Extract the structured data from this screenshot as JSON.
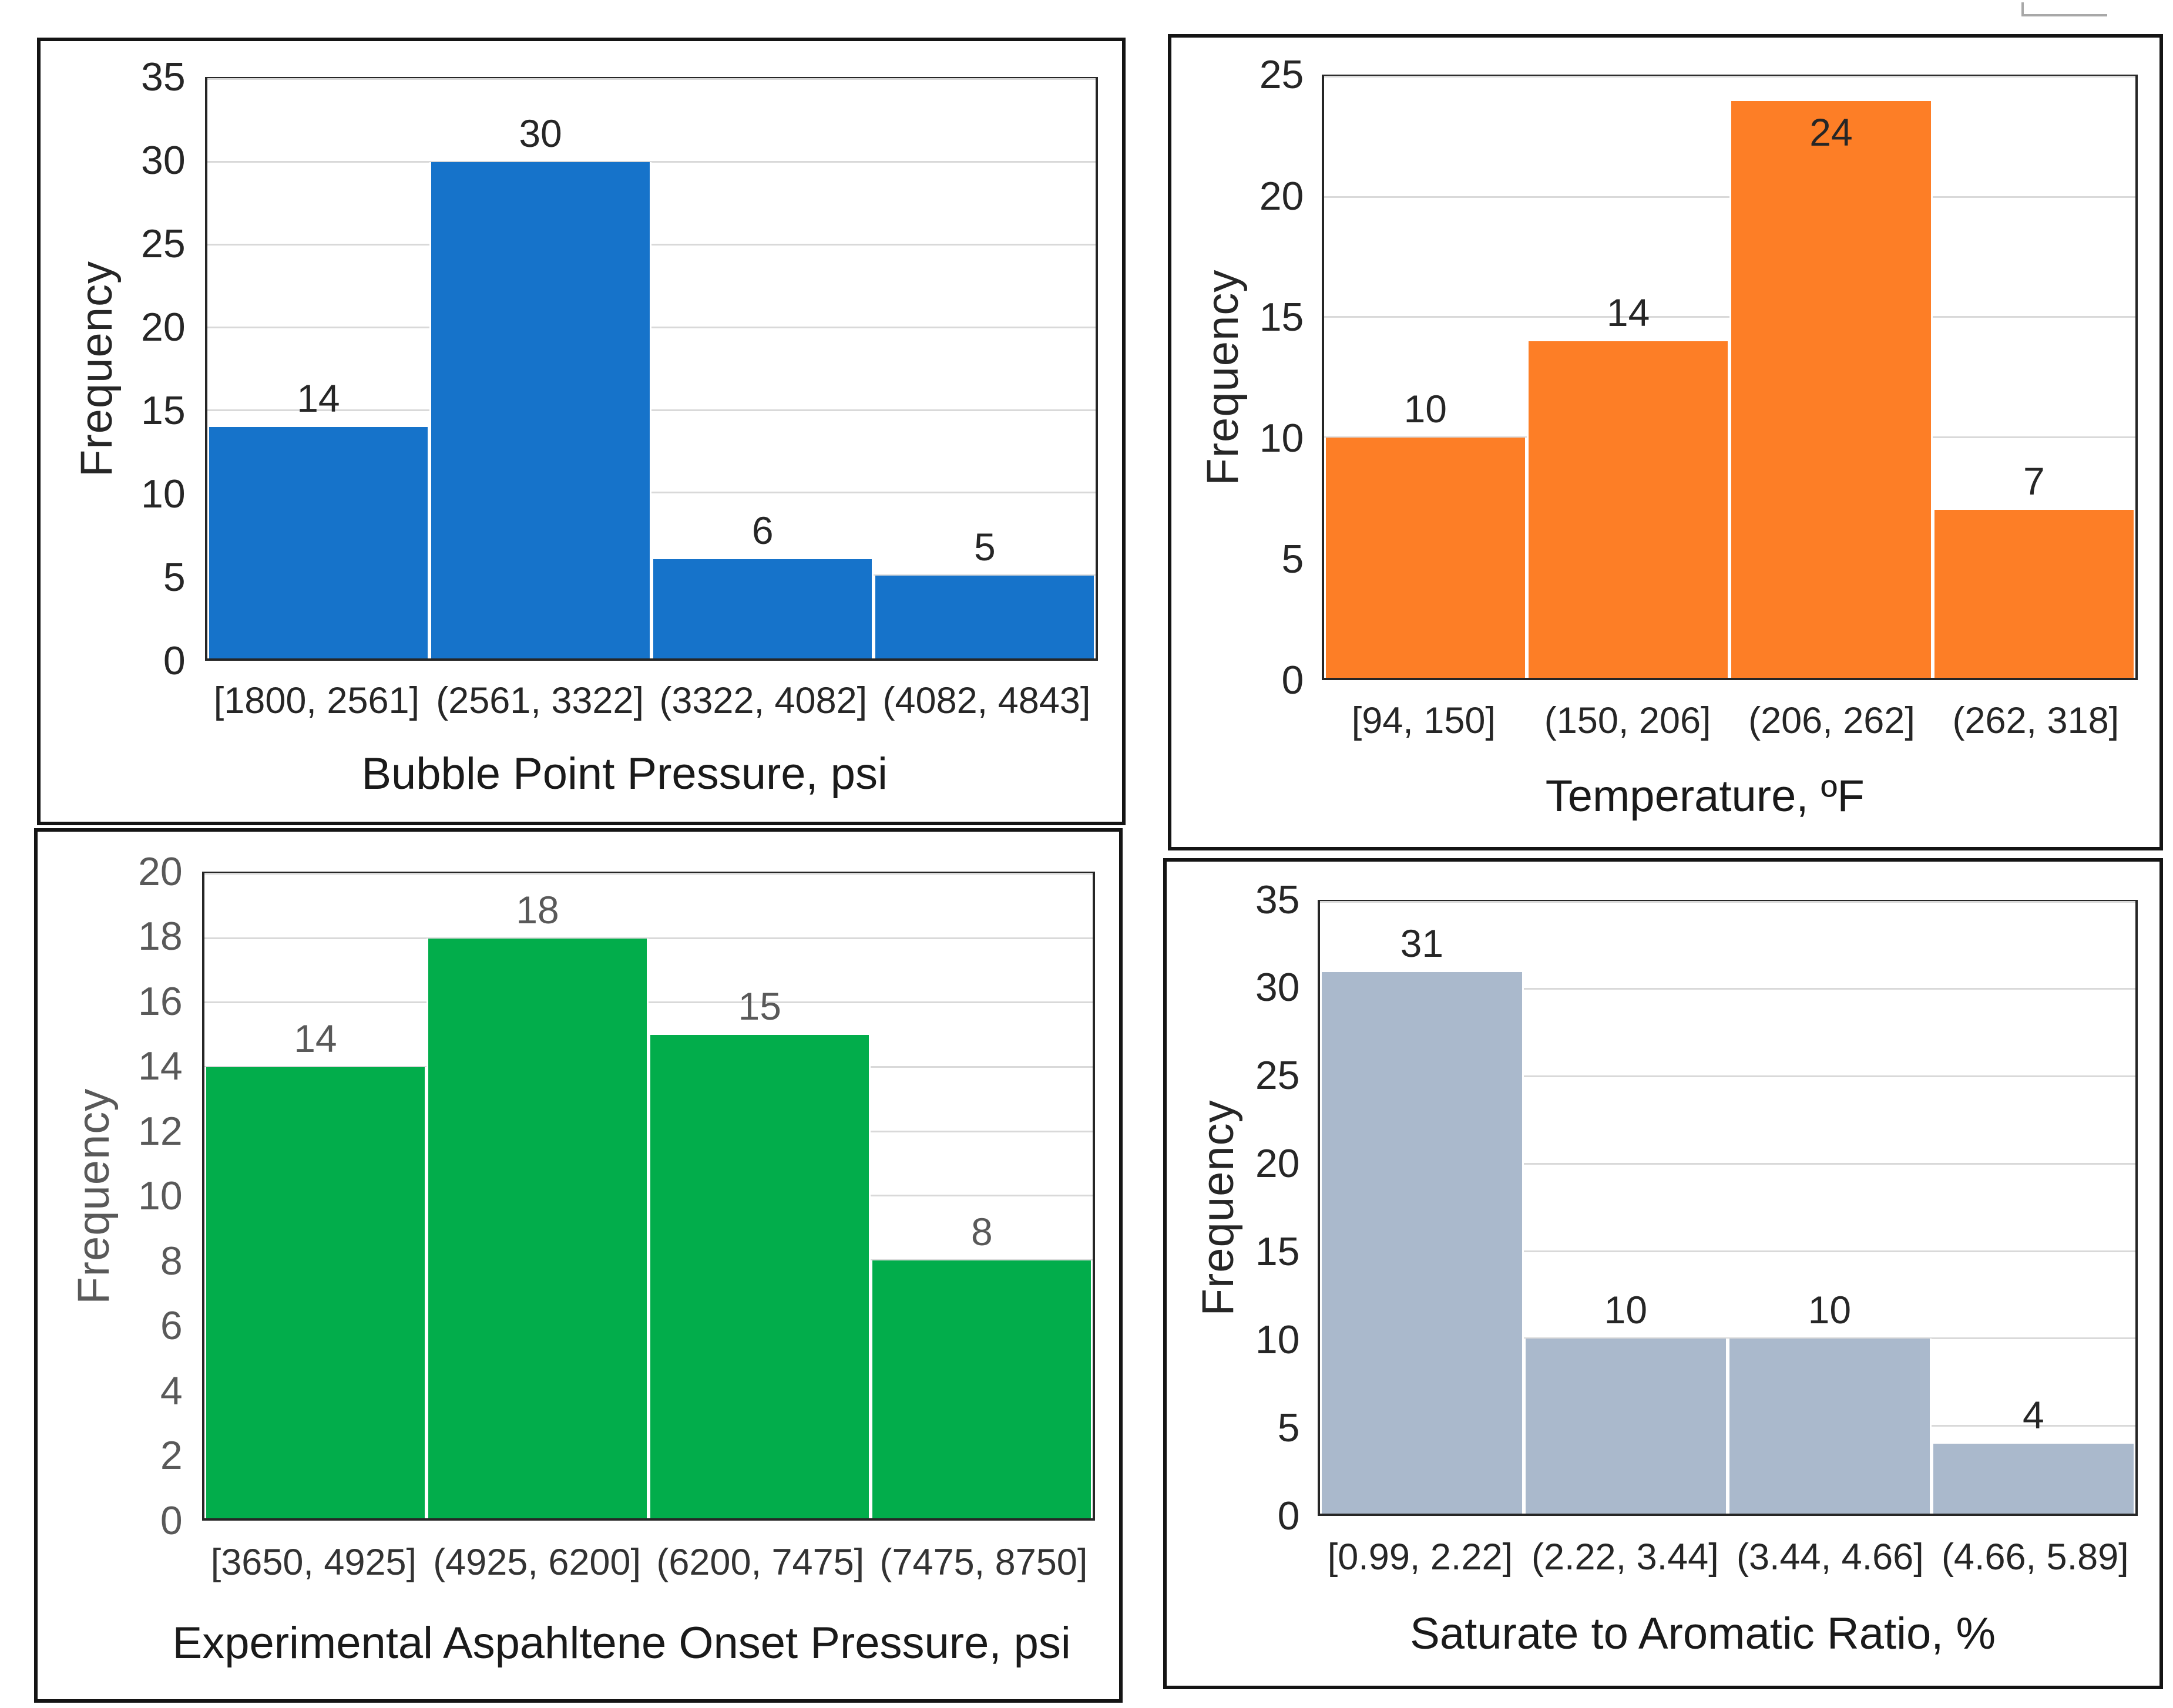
{
  "figure": {
    "background": "#ffffff",
    "panel_border_color": "#141414",
    "grid_color": "#d9d9d9",
    "plot_border_color": "#262626",
    "corner_fragment": "cropped-gray-box-outline"
  },
  "chart_data": [
    {
      "id": "bubble-point-pressure-histogram",
      "type": "bar",
      "title": "",
      "xlabel": "Bubble Point Pressure, psi",
      "ylabel": "Frequency",
      "categories": [
        "[1800, 2561]",
        "(2561, 3322]",
        "(3322, 4082]",
        "(4082, 4843]"
      ],
      "values": [
        14,
        30,
        6,
        5
      ],
      "ylim": [
        0,
        35
      ],
      "ytick_step": 5,
      "yticks": [
        0,
        5,
        10,
        15,
        20,
        25,
        30,
        35
      ],
      "grid": true,
      "legend": "none",
      "bar_color": "#1673CA",
      "colors": {
        "yticks": "#262626",
        "ytitle": "#262626",
        "data_labels": "#262626",
        "xticks": "#262626",
        "xtitle": "#1a1a1a"
      }
    },
    {
      "id": "temperature-histogram",
      "type": "bar",
      "title": "",
      "xlabel": "Temperature, ºF",
      "ylabel": "Frequency",
      "categories": [
        "[94, 150]",
        "(150, 206]",
        "(206, 262]",
        "(262, 318]"
      ],
      "values": [
        10,
        14,
        24,
        7
      ],
      "ylim": [
        0,
        25
      ],
      "ytick_step": 5,
      "yticks": [
        0,
        5,
        10,
        15,
        20,
        25
      ],
      "grid": true,
      "legend": "none",
      "bar_color": "#FD7E26",
      "colors": {
        "yticks": "#262626",
        "ytitle": "#262626",
        "data_labels": "#262626",
        "xticks": "#262626",
        "xtitle": "#1a1a1a"
      }
    },
    {
      "id": "asphaltene-onset-pressure-histogram",
      "type": "bar",
      "title": "",
      "xlabel": "Experimental Aspahltene Onset Pressure, psi",
      "ylabel": "Frequency",
      "categories": [
        "[3650, 4925]",
        "(4925, 6200]",
        "(6200, 7475]",
        "(7475, 8750]"
      ],
      "values": [
        14,
        18,
        15,
        8
      ],
      "ylim": [
        0,
        20
      ],
      "ytick_step": 2,
      "yticks": [
        0,
        2,
        4,
        6,
        8,
        10,
        12,
        14,
        16,
        18,
        20
      ],
      "grid": true,
      "legend": "none",
      "bar_color": "#02AD4B",
      "colors": {
        "yticks": "#595959",
        "ytitle": "#595959",
        "data_labels": "#595959",
        "xticks": "#333333",
        "xtitle": "#1a1a1a"
      }
    },
    {
      "id": "saturate-to-aromatic-ratio-histogram",
      "type": "bar",
      "title": "",
      "xlabel": "Saturate to Aromatic Ratio, %",
      "ylabel": "Frequency",
      "categories": [
        "[0.99, 2.22]",
        "(2.22, 3.44]",
        "(3.44, 4.66]",
        "(4.66, 5.89]"
      ],
      "values": [
        31,
        10,
        10,
        4
      ],
      "ylim": [
        0,
        35
      ],
      "ytick_step": 5,
      "yticks": [
        0,
        5,
        10,
        15,
        20,
        25,
        30,
        35
      ],
      "grid": true,
      "legend": "none",
      "bar_color": "#AAB9CC",
      "colors": {
        "yticks": "#262626",
        "ytitle": "#262626",
        "data_labels": "#262626",
        "xticks": "#262626",
        "xtitle": "#1a1a1a"
      }
    }
  ]
}
